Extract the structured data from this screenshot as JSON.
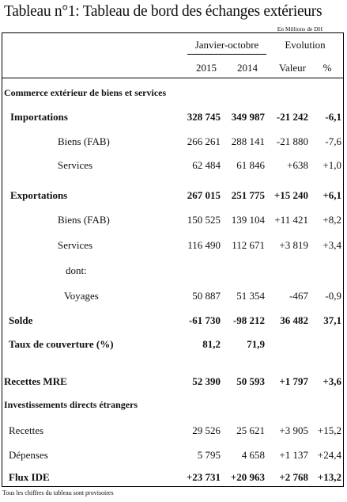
{
  "title": "Tableau n°1: Tableau de bord des échanges extérieurs",
  "unit": "En Millions de DH",
  "header": {
    "period": "Janvier-octobre",
    "evolution": "Evolution",
    "y2015": "2015",
    "y2014": "2014",
    "valeur": "Valeur",
    "pct": "%"
  },
  "rows": [
    {
      "label": "Commerce extérieur de biens et services",
      "v2015": "",
      "v2014": "",
      "val": "",
      "pct": ""
    },
    {
      "label": "Importations",
      "v2015": "328 745",
      "v2014": "349 987",
      "val": "-21 242",
      "pct": "-6,1"
    },
    {
      "label": "Biens (FAB)",
      "v2015": "266 261",
      "v2014": "288 141",
      "val": "-21 880",
      "pct": "-7,6"
    },
    {
      "label": "Services",
      "v2015": "62 484",
      "v2014": "61 846",
      "val": "+638",
      "pct": "+1,0"
    },
    {
      "label": "Exportations",
      "v2015": "267 015",
      "v2014": "251 775",
      "val": "+15 240",
      "pct": "+6,1"
    },
    {
      "label": "Biens (FAB)",
      "v2015": "150 525",
      "v2014": "139 104",
      "val": "+11 421",
      "pct": "+8,2"
    },
    {
      "label": "Services",
      "v2015": "116 490",
      "v2014": "112 671",
      "val": "+3 819",
      "pct": "+3,4"
    },
    {
      "label": "dont:",
      "v2015": "",
      "v2014": "",
      "val": "",
      "pct": ""
    },
    {
      "label": "Voyages",
      "v2015": "50 887",
      "v2014": "51 354",
      "val": "-467",
      "pct": "-0,9"
    },
    {
      "label": "Solde",
      "v2015": "-61 730",
      "v2014": "-98 212",
      "val": "36 482",
      "pct": "37,1"
    },
    {
      "label": "Taux de couverture (%)",
      "v2015": "81,2",
      "v2014": "71,9",
      "val": "",
      "pct": ""
    },
    {
      "label": "Recettes MRE",
      "v2015": "52 390",
      "v2014": "50 593",
      "val": "+1 797",
      "pct": "+3,6"
    },
    {
      "label": "Investissements directs étrangers",
      "v2015": "",
      "v2014": "",
      "val": "",
      "pct": ""
    },
    {
      "label": "Recettes",
      "v2015": "29 526",
      "v2014": "25 621",
      "val": "+3 905",
      "pct": "+15,2"
    },
    {
      "label": "Dépenses",
      "v2015": "5 795",
      "v2014": "4 658",
      "val": "+1 137",
      "pct": "+24,4"
    },
    {
      "label": "Flux IDE",
      "v2015": "+23 731",
      "v2014": "+20 963",
      "val": "+2 768",
      "pct": "+13,2"
    }
  ],
  "footnote": "Tous les chiffres du tableau sont provisoires"
}
